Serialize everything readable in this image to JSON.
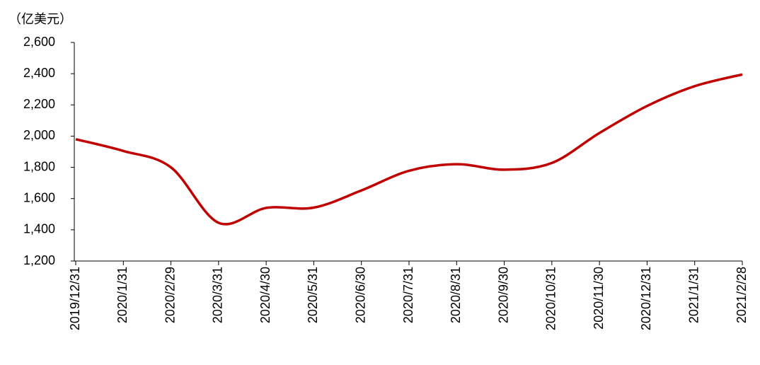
{
  "chart_data": {
    "type": "line",
    "y_axis_label": "（亿美元）",
    "categories": [
      "2019/12/31",
      "2020/1/31",
      "2020/2/29",
      "2020/3/31",
      "2020/4/30",
      "2020/5/31",
      "2020/6/30",
      "2020/7/31",
      "2020/8/31",
      "2020/9/30",
      "2020/10/31",
      "2020/11/30",
      "2020/12/31",
      "2021/1/31",
      "2021/2/28"
    ],
    "series": [
      {
        "color": "#c00000",
        "values": [
          1980,
          1905,
          1800,
          1445,
          1540,
          1542,
          1652,
          1778,
          1820,
          1785,
          1828,
          2020,
          2193,
          2320,
          2395
        ]
      }
    ],
    "ylim": [
      1200,
      2600
    ],
    "yticks": [
      {
        "value": 1200,
        "label": "1,200"
      },
      {
        "value": 1400,
        "label": "1,400"
      },
      {
        "value": 1600,
        "label": "1,600"
      },
      {
        "value": 1800,
        "label": "1,800"
      },
      {
        "value": 2000,
        "label": "2,000"
      },
      {
        "value": 2200,
        "label": "2,200"
      },
      {
        "value": 2400,
        "label": "2,400"
      },
      {
        "value": 2600,
        "label": "2,600"
      }
    ]
  }
}
